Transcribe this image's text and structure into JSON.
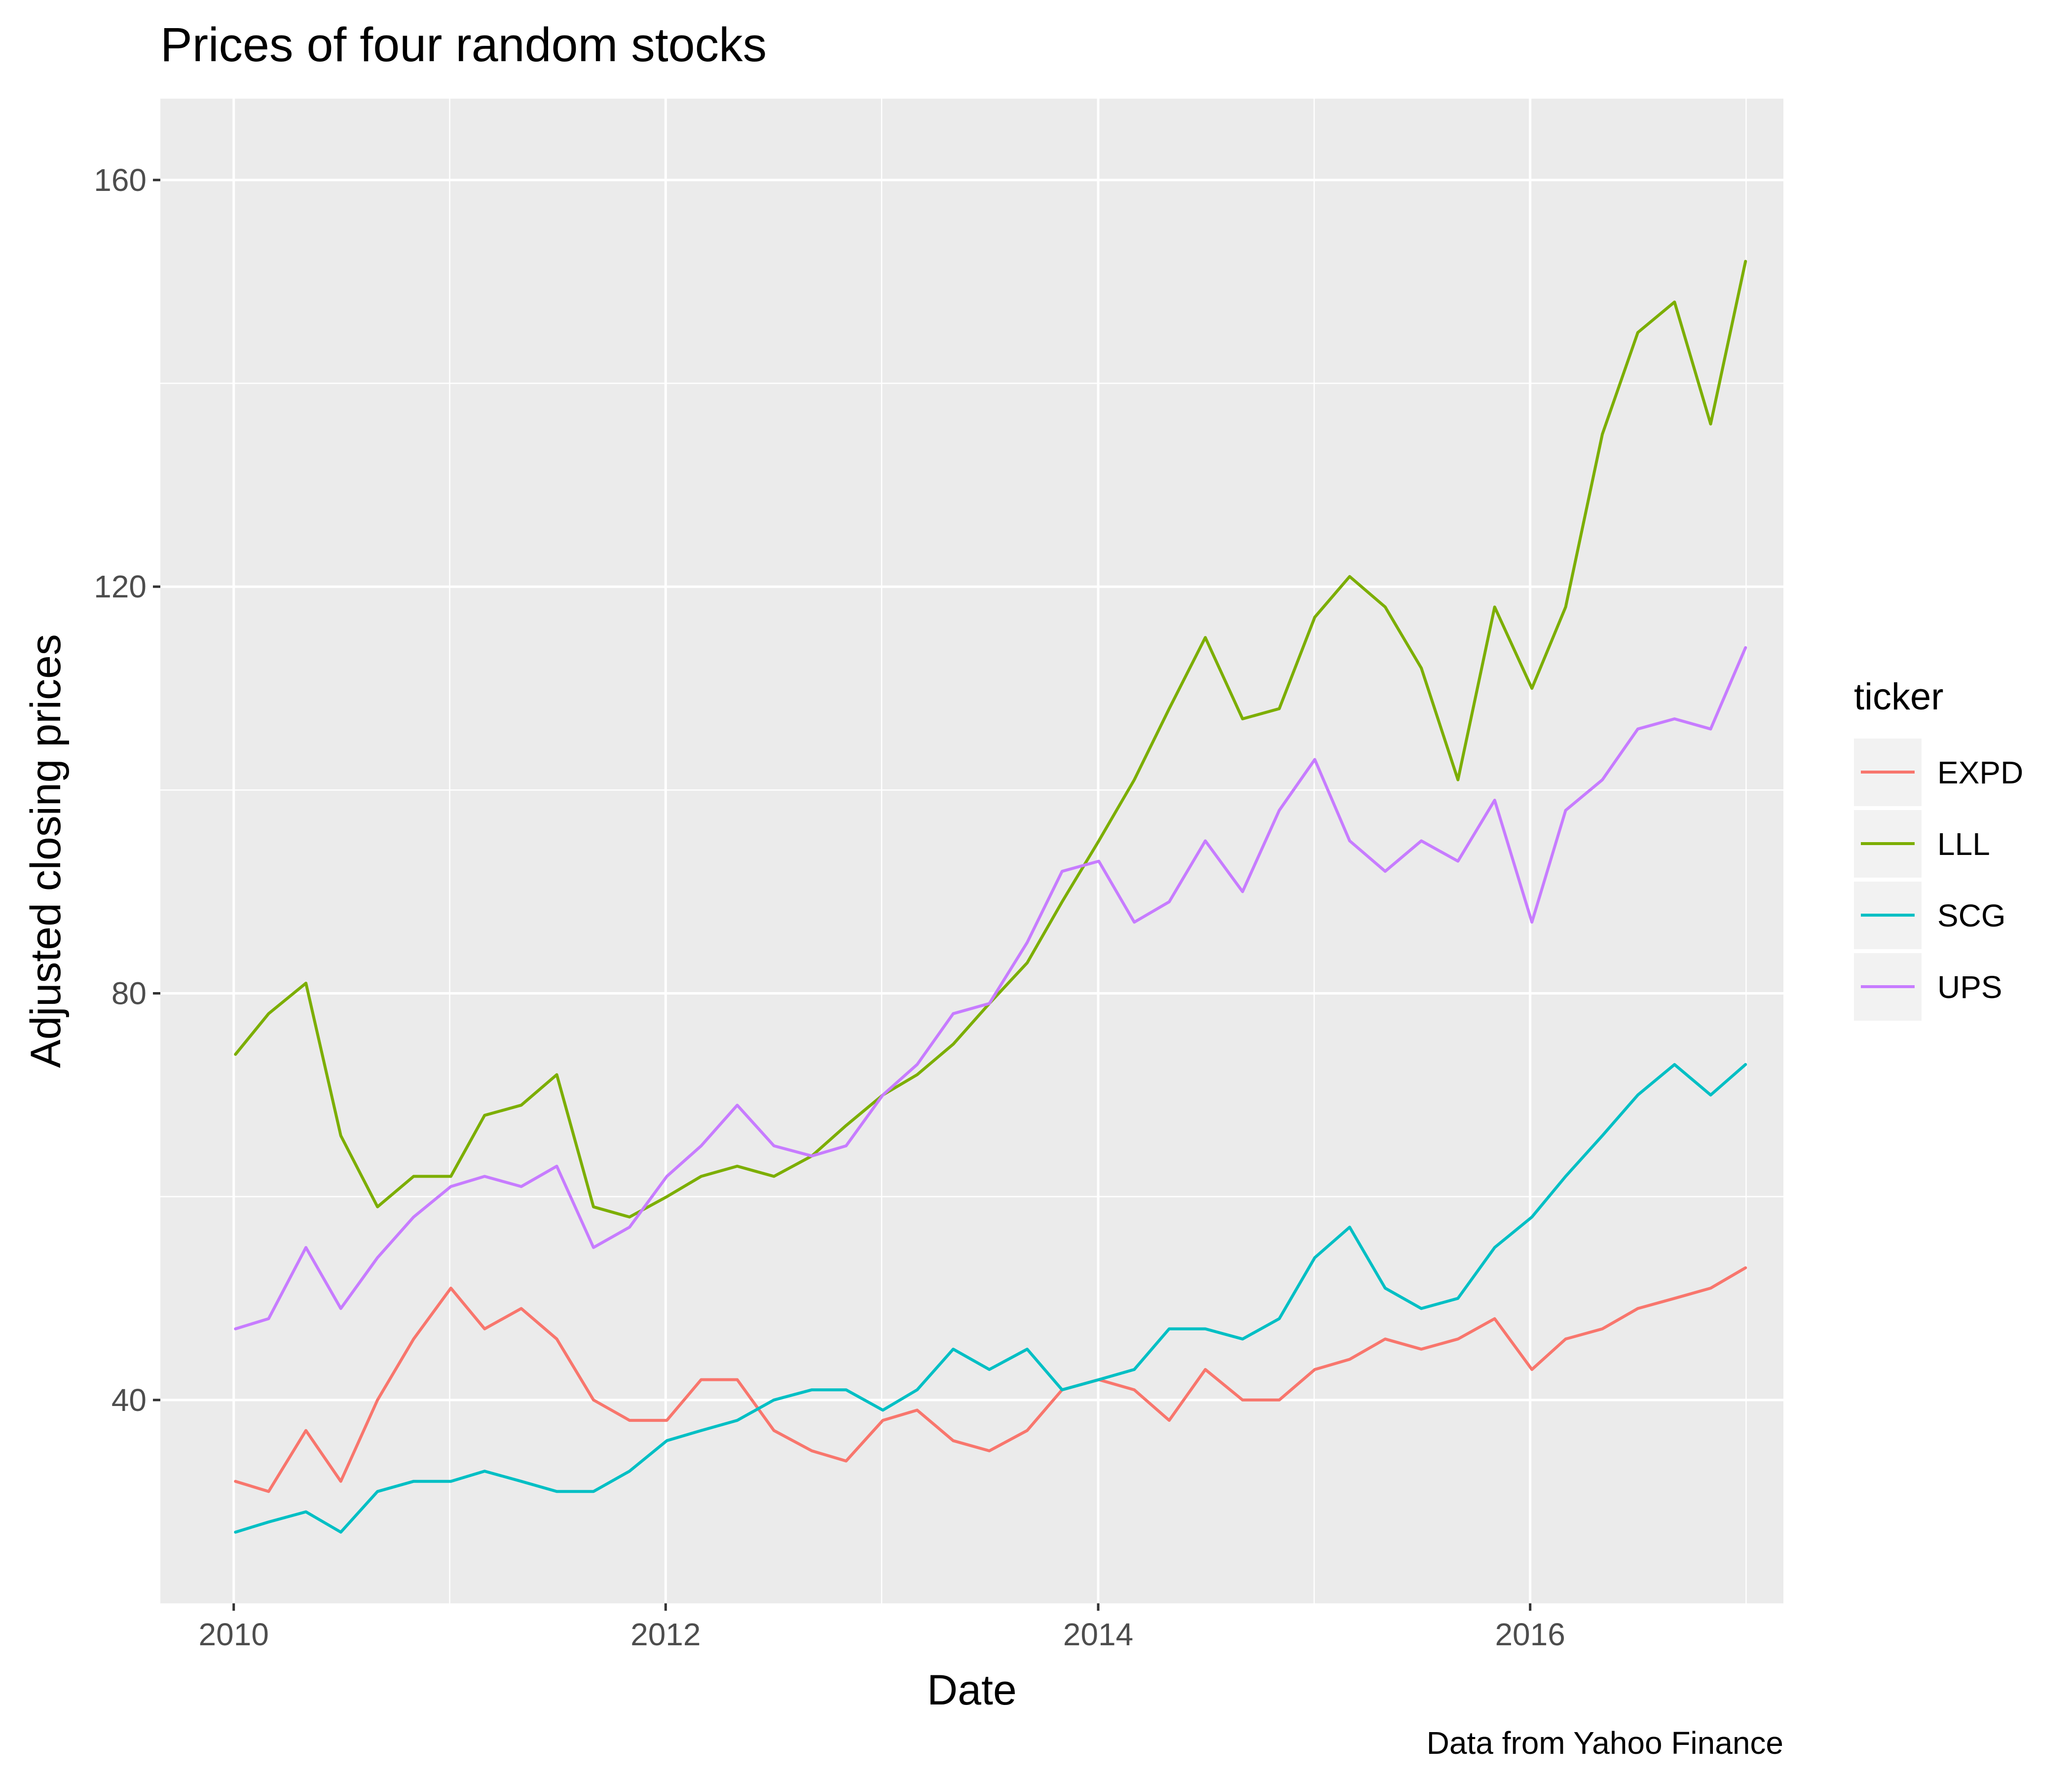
{
  "chart_data": {
    "type": "line",
    "title": "Prices of four random stocks",
    "xlabel": "Date",
    "ylabel": "Adjusted closing prices",
    "caption": "Data from Yahoo Finance",
    "x_tick_labels": [
      "2010",
      "2012",
      "2014",
      "2016"
    ],
    "y_tick_labels": [
      "40",
      "80",
      "120",
      "160"
    ],
    "x_ticks": [
      "2010-01-01",
      "2012-01-01",
      "2014-01-01",
      "2016-01-01"
    ],
    "y_ticks": [
      40,
      80,
      120,
      160
    ],
    "xlim": [
      "2009-08-30",
      "2017-03-04"
    ],
    "ylim": [
      20,
      168
    ],
    "grid": true,
    "background": "#ebebeb",
    "legend": {
      "title": "ticker",
      "position": "right",
      "entries": [
        "EXPD",
        "LLL",
        "SCG",
        "UPS"
      ]
    },
    "x": [
      "2010-01-04",
      "2010-03-01",
      "2010-05-03",
      "2010-07-01",
      "2010-09-01",
      "2010-11-01",
      "2011-01-03",
      "2011-03-01",
      "2011-05-02",
      "2011-07-01",
      "2011-09-01",
      "2011-11-01",
      "2012-01-03",
      "2012-03-01",
      "2012-05-01",
      "2012-07-02",
      "2012-09-04",
      "2012-11-01",
      "2013-01-02",
      "2013-03-01",
      "2013-05-01",
      "2013-07-01",
      "2013-09-03",
      "2013-11-01",
      "2014-01-02",
      "2014-03-03",
      "2014-05-01",
      "2014-07-01",
      "2014-09-02",
      "2014-11-03",
      "2015-01-02",
      "2015-03-02",
      "2015-05-01",
      "2015-07-01",
      "2015-09-01",
      "2015-11-02",
      "2016-01-04",
      "2016-03-01",
      "2016-05-02",
      "2016-07-01",
      "2016-09-01",
      "2016-11-01",
      "2016-12-30"
    ],
    "series": [
      {
        "name": "EXPD",
        "color": "#f8766d",
        "values": [
          32,
          31,
          37,
          32,
          40,
          46,
          51,
          47,
          49,
          46,
          40,
          38,
          38,
          42,
          42,
          37,
          35,
          34,
          38,
          39,
          36,
          35,
          37,
          41,
          42,
          41,
          38,
          43,
          40,
          40,
          43,
          44,
          46,
          45,
          46,
          48,
          43,
          46,
          47,
          49,
          50,
          51,
          53
        ]
      },
      {
        "name": "LLL",
        "color": "#7cae00",
        "values": [
          74,
          78,
          81,
          66,
          59,
          62,
          62,
          68,
          69,
          72,
          59,
          58,
          60,
          62,
          63,
          62,
          64,
          67,
          70,
          72,
          75,
          79,
          83,
          89,
          95,
          101,
          108,
          115,
          107,
          108,
          117,
          121,
          118,
          112,
          101,
          118,
          110,
          118,
          135,
          145,
          148,
          136,
          152
        ]
      },
      {
        "name": "SCG",
        "color": "#00bfc4",
        "values": [
          27,
          28,
          29,
          27,
          31,
          32,
          32,
          33,
          32,
          31,
          31,
          33,
          36,
          37,
          38,
          40,
          41,
          41,
          39,
          41,
          45,
          43,
          45,
          41,
          42,
          43,
          47,
          47,
          46,
          48,
          54,
          57,
          51,
          49,
          50,
          55,
          58,
          62,
          66,
          70,
          73,
          70,
          73
        ]
      },
      {
        "name": "UPS",
        "color": "#c77cff",
        "values": [
          47,
          48,
          55,
          49,
          54,
          58,
          61,
          62,
          61,
          63,
          55,
          57,
          62,
          65,
          69,
          65,
          64,
          65,
          70,
          73,
          78,
          79,
          85,
          92,
          93,
          87,
          89,
          95,
          90,
          98,
          103,
          95,
          92,
          95,
          93,
          99,
          87,
          98,
          101,
          106,
          107,
          106,
          114
        ]
      }
    ]
  }
}
